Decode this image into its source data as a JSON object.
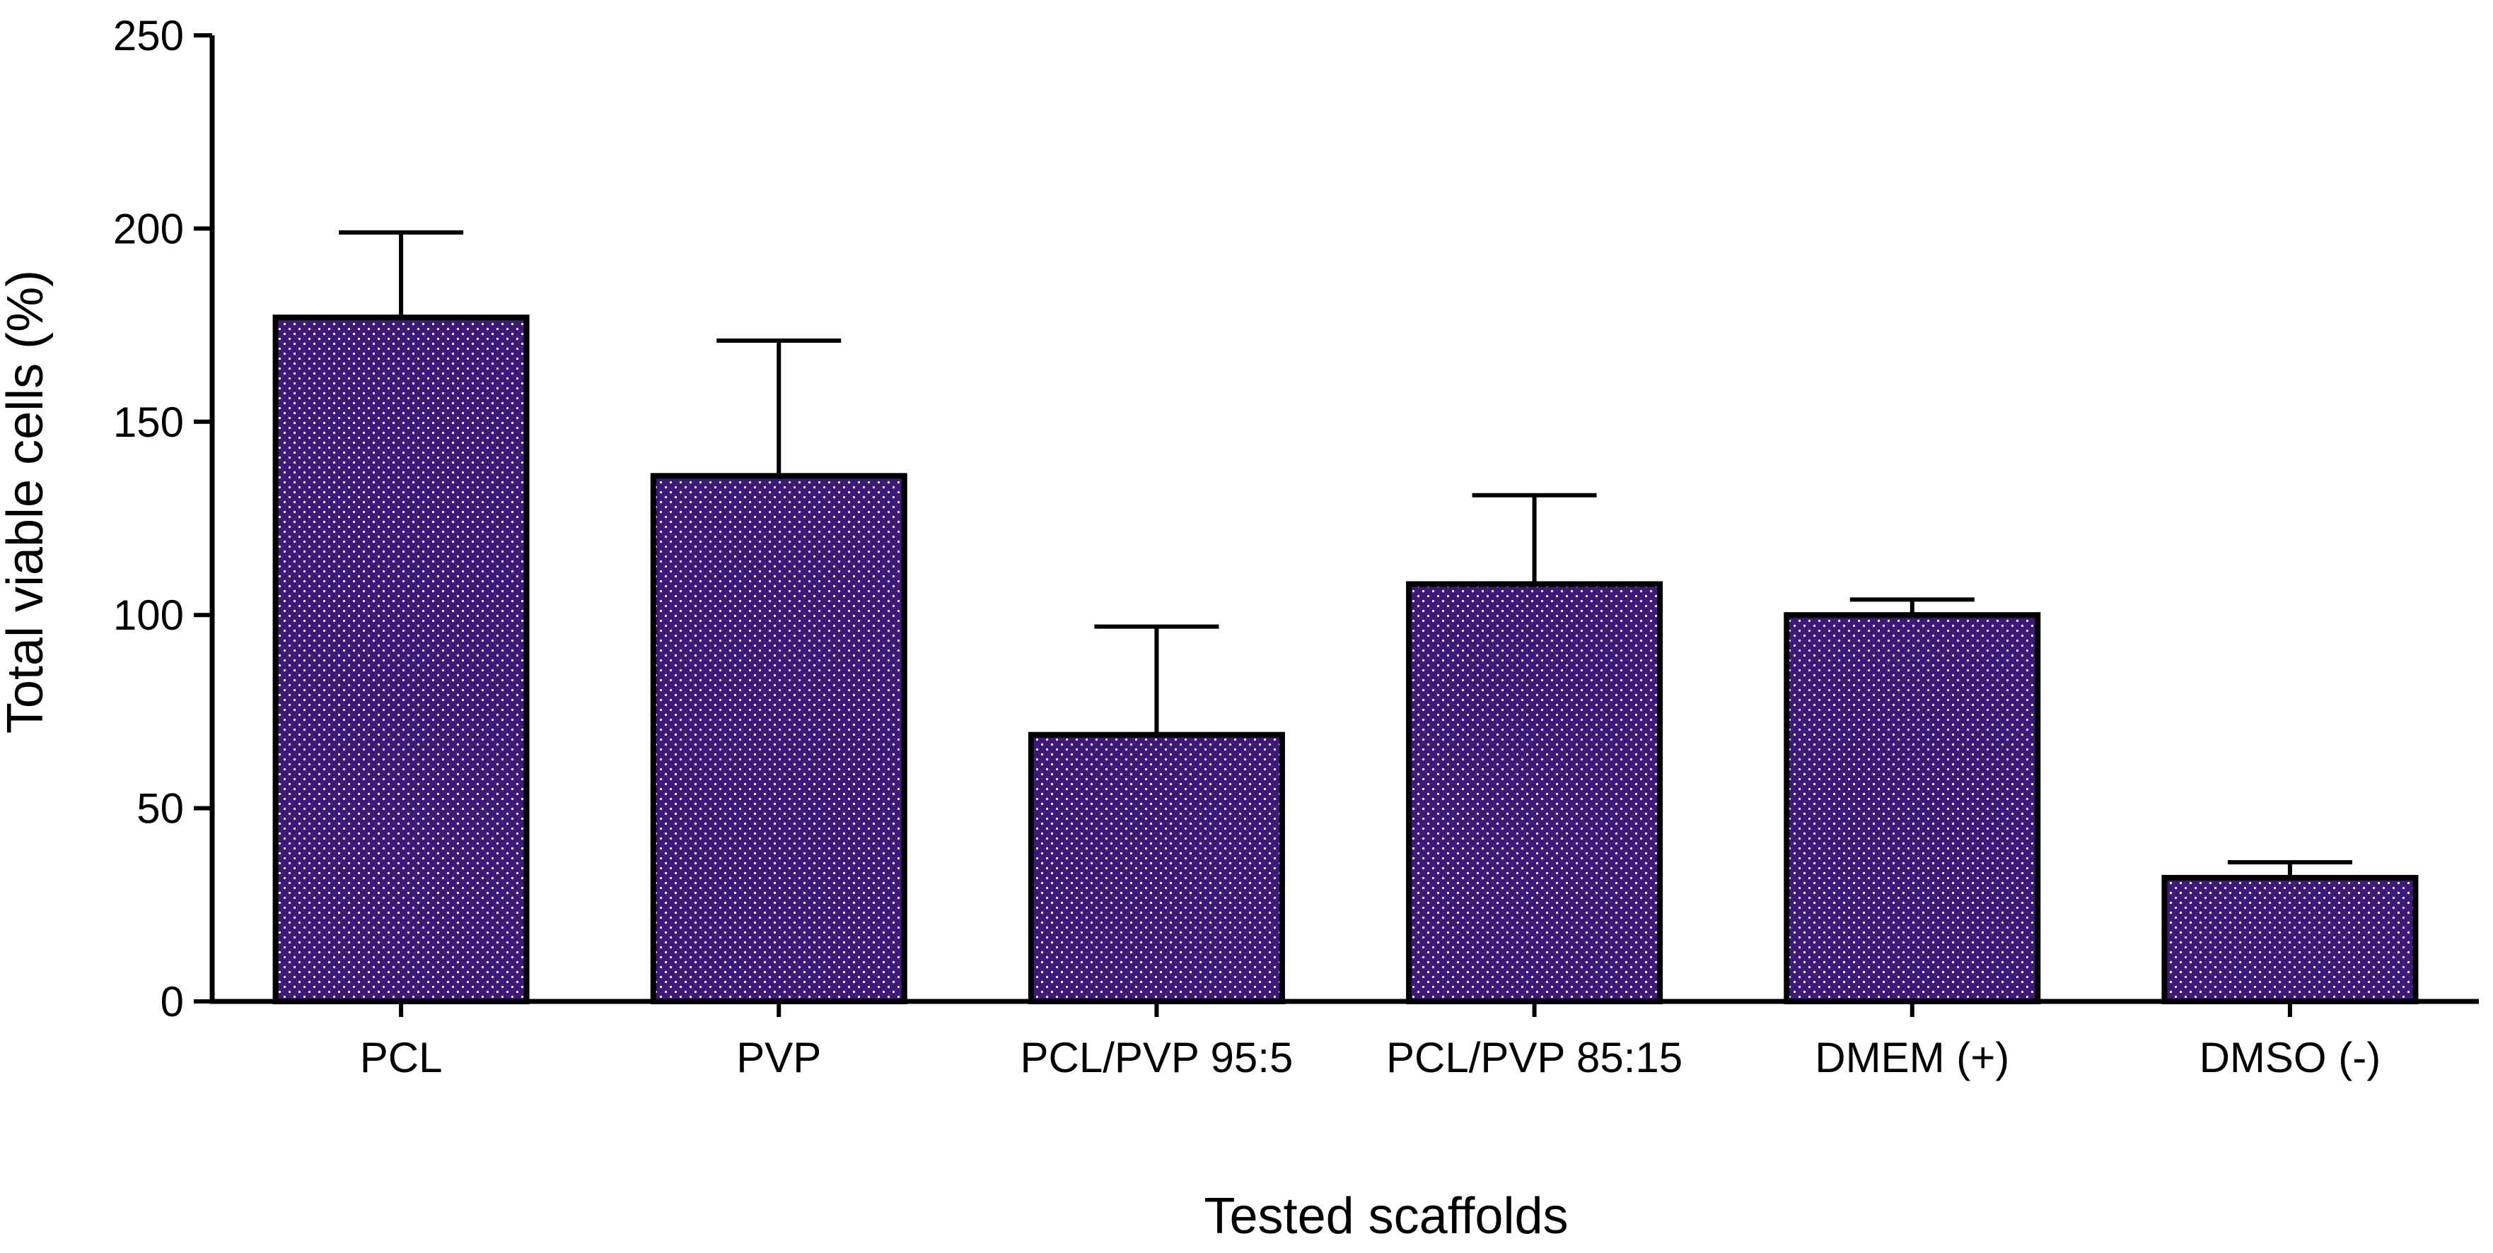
{
  "chart_data": {
    "type": "bar",
    "title": "",
    "xlabel": "Tested scaffolds",
    "ylabel": "Total viable cells (%)",
    "ylim": [
      0,
      250
    ],
    "yticks": [
      0,
      50,
      100,
      150,
      200,
      250
    ],
    "grid": false,
    "categories": [
      "PCL",
      "PVP",
      "PCL/PVP 95:5",
      "PCL/PVP 85:15",
      "DMEM (+)",
      "DMSO (-)"
    ],
    "values": [
      177,
      136,
      69,
      108,
      100,
      32
    ],
    "error_upper": [
      22,
      35,
      28,
      23,
      4,
      4
    ],
    "colors": {
      "bar_fill": "#3d1a7a",
      "bar_dots": "#ffffff",
      "edge": "#000000"
    }
  }
}
